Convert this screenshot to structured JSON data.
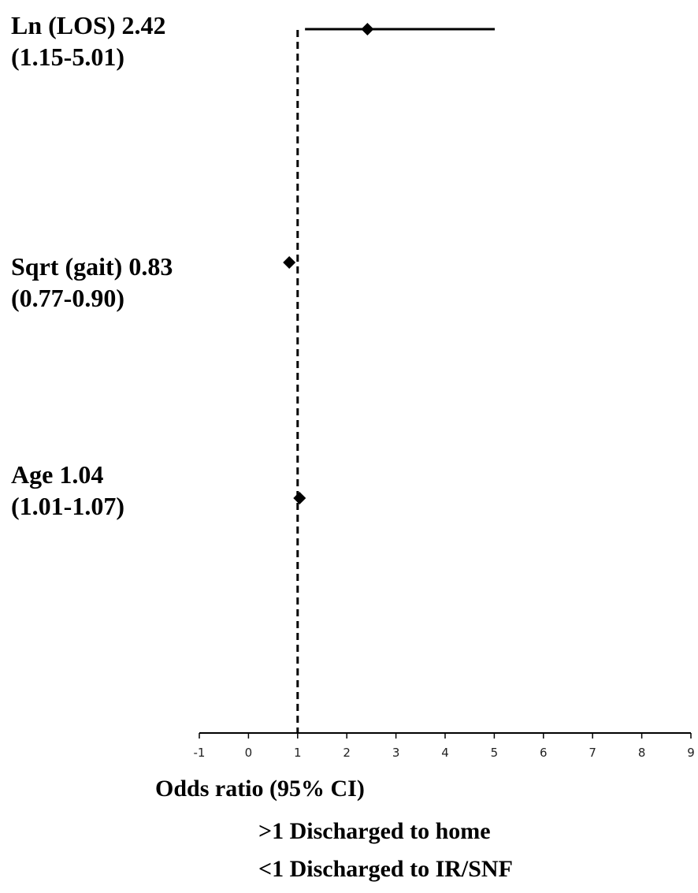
{
  "chart_data": {
    "type": "forest",
    "xlabel": "Odds ratio (95% CI)",
    "xlim": [
      -1,
      9
    ],
    "x_ticks": [
      "-1",
      "0",
      "1",
      "2",
      "3",
      "4",
      "5",
      "6",
      "7",
      "8",
      "9"
    ],
    "reference_line": 1,
    "rows": [
      {
        "name": "Ln (LOS)",
        "estimate": 2.42,
        "ci_low": 1.15,
        "ci_high": 5.01,
        "label_line1": "Ln (LOS) 2.42",
        "label_line2": "(1.15-5.01)"
      },
      {
        "name": "Sqrt (gait)",
        "estimate": 0.83,
        "ci_low": 0.77,
        "ci_high": 0.9,
        "label_line1": "Sqrt (gait) 0.83",
        "label_line2": "(0.77-0.90)"
      },
      {
        "name": "Age",
        "estimate": 1.04,
        "ci_low": 1.01,
        "ci_high": 1.07,
        "label_line1": "Age  1.04",
        "label_line2": "(1.01-1.07)"
      }
    ],
    "notes": [
      ">1 Discharged to home",
      "<1 Discharged to IR/SNF"
    ]
  }
}
